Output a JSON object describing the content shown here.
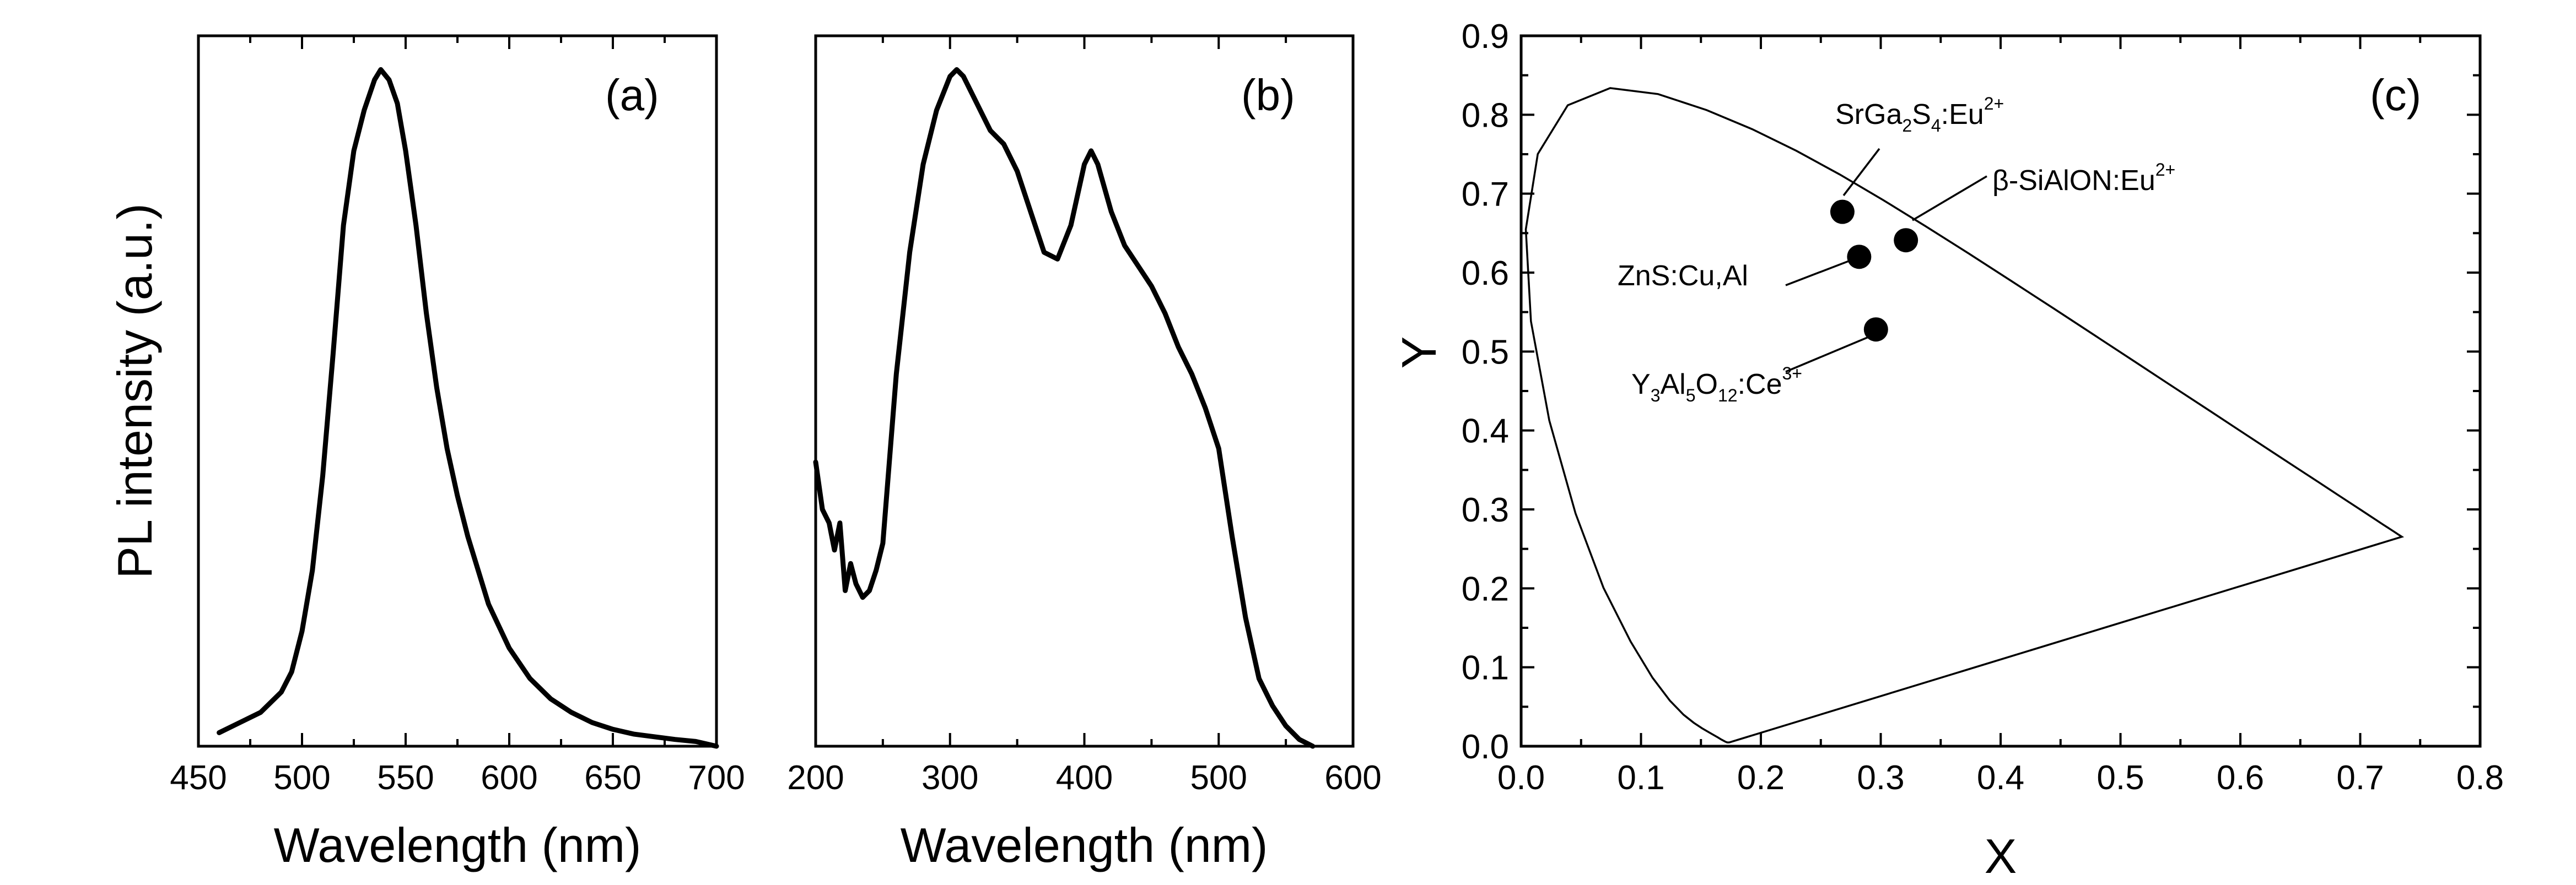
{
  "chart_data": [
    {
      "type": "line",
      "panel_label": "(a)",
      "xlabel": "Wavelength (nm)",
      "ylabel": "PL intensity (a.u.)",
      "xlim": [
        450,
        700
      ],
      "ylim": [
        0,
        1.05
      ],
      "xticks": [
        450,
        500,
        550,
        600,
        650,
        700
      ],
      "yticks_shown": false,
      "grid": false,
      "x": [
        460,
        470,
        480,
        490,
        495,
        500,
        505,
        510,
        515,
        520,
        525,
        530,
        535,
        538,
        542,
        546,
        550,
        555,
        560,
        565,
        570,
        575,
        580,
        590,
        600,
        610,
        620,
        630,
        640,
        650,
        660,
        670,
        680,
        690,
        700
      ],
      "y": [
        0.02,
        0.035,
        0.05,
        0.08,
        0.11,
        0.17,
        0.26,
        0.4,
        0.58,
        0.77,
        0.88,
        0.94,
        0.985,
        1.0,
        0.985,
        0.95,
        0.88,
        0.77,
        0.64,
        0.53,
        0.44,
        0.37,
        0.31,
        0.21,
        0.145,
        0.1,
        0.07,
        0.05,
        0.035,
        0.025,
        0.018,
        0.014,
        0.01,
        0.007,
        0.0
      ]
    },
    {
      "type": "line",
      "panel_label": "(b)",
      "xlabel": "Wavelength (nm)",
      "xlim": [
        200,
        600
      ],
      "ylim": [
        0,
        1.05
      ],
      "xticks": [
        200,
        300,
        400,
        500,
        600
      ],
      "yticks_shown": false,
      "grid": false,
      "x": [
        200,
        205,
        210,
        214,
        218,
        222,
        226,
        230,
        235,
        240,
        245,
        250,
        260,
        270,
        280,
        290,
        300,
        305,
        310,
        320,
        330,
        340,
        350,
        360,
        370,
        380,
        390,
        400,
        405,
        410,
        420,
        430,
        440,
        450,
        460,
        470,
        480,
        490,
        500,
        510,
        515,
        520,
        530,
        540,
        550,
        560,
        570
      ],
      "y": [
        0.42,
        0.35,
        0.33,
        0.29,
        0.33,
        0.23,
        0.27,
        0.24,
        0.22,
        0.23,
        0.26,
        0.3,
        0.55,
        0.73,
        0.86,
        0.94,
        0.99,
        1.0,
        0.99,
        0.95,
        0.91,
        0.89,
        0.85,
        0.79,
        0.73,
        0.72,
        0.77,
        0.86,
        0.88,
        0.86,
        0.79,
        0.74,
        0.71,
        0.68,
        0.64,
        0.59,
        0.55,
        0.5,
        0.44,
        0.31,
        0.25,
        0.19,
        0.1,
        0.06,
        0.03,
        0.01,
        0.0
      ]
    },
    {
      "type": "scatter",
      "panel_label": "(c)",
      "xlabel": "X",
      "ylabel": "Y",
      "xlim": [
        0.0,
        0.8
      ],
      "ylim": [
        0.0,
        0.9
      ],
      "xticks": [
        0.0,
        0.1,
        0.2,
        0.3,
        0.4,
        0.5,
        0.6,
        0.7,
        0.8
      ],
      "yticks": [
        0.0,
        0.1,
        0.2,
        0.3,
        0.4,
        0.5,
        0.6,
        0.7,
        0.8,
        0.9
      ],
      "grid": false,
      "locus_x": [
        0.1741,
        0.1733,
        0.1726,
        0.1721,
        0.1714,
        0.1703,
        0.1689,
        0.1669,
        0.1644,
        0.1611,
        0.1566,
        0.151,
        0.144,
        0.1355,
        0.1241,
        0.1096,
        0.0913,
        0.0687,
        0.0454,
        0.0235,
        0.0082,
        0.0039,
        0.0139,
        0.0389,
        0.0743,
        0.1142,
        0.1547,
        0.1929,
        0.2296,
        0.2658,
        0.3016,
        0.3373,
        0.3731,
        0.4087,
        0.4441,
        0.4788,
        0.5125,
        0.5448,
        0.5752,
        0.6029,
        0.627,
        0.6482,
        0.6658,
        0.6801,
        0.6915,
        0.7006,
        0.7079,
        0.714,
        0.719,
        0.723,
        0.726,
        0.7283,
        0.73,
        0.7311,
        0.732,
        0.7347
      ],
      "locus_y": [
        0.005,
        0.0048,
        0.0048,
        0.0048,
        0.0051,
        0.0058,
        0.0069,
        0.0086,
        0.0109,
        0.0138,
        0.0177,
        0.0227,
        0.0297,
        0.0399,
        0.0578,
        0.0868,
        0.1327,
        0.2007,
        0.295,
        0.4127,
        0.5384,
        0.6548,
        0.7502,
        0.812,
        0.8338,
        0.8262,
        0.8059,
        0.7816,
        0.7543,
        0.7243,
        0.6923,
        0.6589,
        0.6245,
        0.5896,
        0.5547,
        0.5202,
        0.4866,
        0.4544,
        0.4242,
        0.3965,
        0.3725,
        0.3514,
        0.334,
        0.3197,
        0.3083,
        0.2993,
        0.292,
        0.2859,
        0.2809,
        0.277,
        0.274,
        0.2717,
        0.27,
        0.2689,
        0.268,
        0.2653
      ],
      "points": [
        {
          "name_main": "SrGa",
          "s1": "2",
          "m2": "S",
          "s2": "4",
          "m3": ":Eu",
          "sup": "2+",
          "x": 0.268,
          "y": 0.677
        },
        {
          "name_main": "β-SiAlON:Eu",
          "sup": "2+",
          "x": 0.321,
          "y": 0.641
        },
        {
          "name_main": "ZnS:Cu,Al",
          "x": 0.282,
          "y": 0.62
        },
        {
          "name_main": "Y",
          "s1": "3",
          "m2": "Al",
          "s2": "5",
          "m3": "O",
          "s3": "12",
          "m4": ":Ce",
          "sup": "3+",
          "x": 0.296,
          "y": 0.528
        }
      ]
    }
  ]
}
